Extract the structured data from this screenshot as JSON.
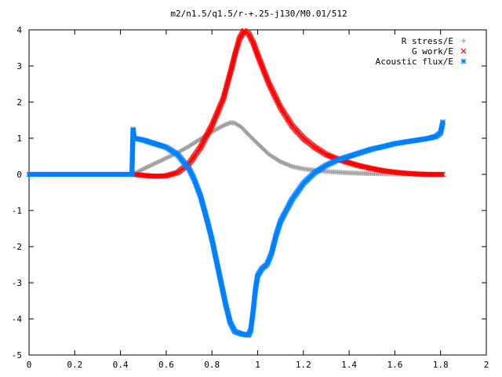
{
  "chart_data": {
    "type": "scatter",
    "title": "m2/n1.5/q1.5/r-+.25-j130/M0.01/512",
    "xlim": [
      0,
      2
    ],
    "ylim": [
      -5,
      4
    ],
    "x_ticks": [
      "0",
      "0.2",
      "0.4",
      "0.6",
      "0.8",
      "1",
      "1.2",
      "1.4",
      "1.6",
      "1.8",
      "2"
    ],
    "y_ticks": [
      "-5",
      "-4",
      "-3",
      "-2",
      "-1",
      "0",
      "1",
      "2",
      "3",
      "4"
    ],
    "grid": false,
    "legend_position": "top-right",
    "series": [
      {
        "name": "R stress/E",
        "marker": "plus",
        "color": "#a0a0a0",
        "points": [
          [
            0.0,
            0
          ],
          [
            0.2,
            0
          ],
          [
            0.4,
            0
          ],
          [
            0.45,
            0
          ],
          [
            0.46,
            0.02
          ],
          [
            0.5,
            0.15
          ],
          [
            0.55,
            0.3
          ],
          [
            0.6,
            0.45
          ],
          [
            0.65,
            0.6
          ],
          [
            0.7,
            0.78
          ],
          [
            0.75,
            0.98
          ],
          [
            0.8,
            1.18
          ],
          [
            0.85,
            1.35
          ],
          [
            0.88,
            1.43
          ],
          [
            0.9,
            1.42
          ],
          [
            0.93,
            1.3
          ],
          [
            0.96,
            1.1
          ],
          [
            1.0,
            0.85
          ],
          [
            1.05,
            0.55
          ],
          [
            1.1,
            0.35
          ],
          [
            1.15,
            0.22
          ],
          [
            1.2,
            0.15
          ],
          [
            1.3,
            0.08
          ],
          [
            1.4,
            0.04
          ],
          [
            1.5,
            0.02
          ],
          [
            1.6,
            0.01
          ],
          [
            1.7,
            0.0
          ],
          [
            1.8,
            0.0
          ],
          [
            1.81,
            0.0
          ]
        ]
      },
      {
        "name": "G work/E",
        "marker": "cross",
        "color": "#ff0000",
        "points": [
          [
            0.46,
            0.0
          ],
          [
            0.5,
            -0.03
          ],
          [
            0.55,
            -0.05
          ],
          [
            0.6,
            -0.04
          ],
          [
            0.65,
            0.05
          ],
          [
            0.7,
            0.3
          ],
          [
            0.75,
            0.75
          ],
          [
            0.8,
            1.35
          ],
          [
            0.85,
            2.1
          ],
          [
            0.88,
            2.8
          ],
          [
            0.9,
            3.3
          ],
          [
            0.92,
            3.75
          ],
          [
            0.94,
            3.98
          ],
          [
            0.96,
            3.9
          ],
          [
            0.98,
            3.65
          ],
          [
            1.0,
            3.3
          ],
          [
            1.05,
            2.5
          ],
          [
            1.1,
            1.85
          ],
          [
            1.15,
            1.35
          ],
          [
            1.2,
            1.0
          ],
          [
            1.25,
            0.75
          ],
          [
            1.3,
            0.55
          ],
          [
            1.35,
            0.42
          ],
          [
            1.4,
            0.32
          ],
          [
            1.45,
            0.23
          ],
          [
            1.5,
            0.16
          ],
          [
            1.55,
            0.1
          ],
          [
            1.6,
            0.06
          ],
          [
            1.65,
            0.03
          ],
          [
            1.7,
            0.01
          ],
          [
            1.75,
            0.0
          ],
          [
            1.81,
            0.0
          ]
        ]
      },
      {
        "name": "Acoustic flux/E",
        "marker": "star",
        "color": "#0080ff",
        "points": [
          [
            0.0,
            0
          ],
          [
            0.1,
            0
          ],
          [
            0.2,
            0
          ],
          [
            0.3,
            0
          ],
          [
            0.4,
            0
          ],
          [
            0.45,
            0
          ],
          [
            0.455,
            1.25
          ],
          [
            0.46,
            1.0
          ],
          [
            0.5,
            0.95
          ],
          [
            0.55,
            0.85
          ],
          [
            0.6,
            0.75
          ],
          [
            0.65,
            0.55
          ],
          [
            0.7,
            0.15
          ],
          [
            0.72,
            -0.1
          ],
          [
            0.75,
            -0.6
          ],
          [
            0.78,
            -1.3
          ],
          [
            0.8,
            -1.8
          ],
          [
            0.82,
            -2.4
          ],
          [
            0.84,
            -3.0
          ],
          [
            0.86,
            -3.6
          ],
          [
            0.88,
            -4.1
          ],
          [
            0.9,
            -4.35
          ],
          [
            0.93,
            -4.42
          ],
          [
            0.96,
            -4.45
          ],
          [
            0.97,
            -4.3
          ],
          [
            0.98,
            -3.8
          ],
          [
            0.99,
            -3.2
          ],
          [
            1.0,
            -2.8
          ],
          [
            1.02,
            -2.6
          ],
          [
            1.04,
            -2.5
          ],
          [
            1.06,
            -2.2
          ],
          [
            1.08,
            -1.7
          ],
          [
            1.1,
            -1.3
          ],
          [
            1.15,
            -0.7
          ],
          [
            1.2,
            -0.25
          ],
          [
            1.25,
            0.05
          ],
          [
            1.3,
            0.25
          ],
          [
            1.35,
            0.4
          ],
          [
            1.4,
            0.5
          ],
          [
            1.45,
            0.6
          ],
          [
            1.5,
            0.7
          ],
          [
            1.55,
            0.77
          ],
          [
            1.6,
            0.85
          ],
          [
            1.65,
            0.9
          ],
          [
            1.7,
            0.95
          ],
          [
            1.75,
            1.0
          ],
          [
            1.78,
            1.05
          ],
          [
            1.8,
            1.15
          ],
          [
            1.81,
            1.45
          ]
        ]
      }
    ]
  }
}
